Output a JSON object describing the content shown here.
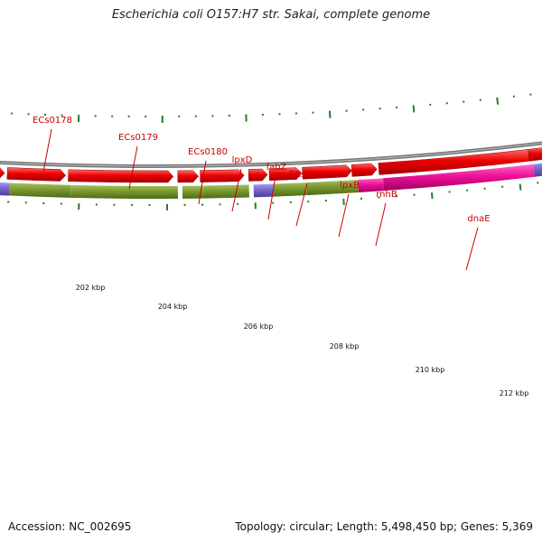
{
  "title": "Escherichia coli O157:H7 str. Sakai, complete genome",
  "footer": {
    "accession": "Accession: NC_002695",
    "summary": "Topology: circular; Length: 5,498,450 bp; Genes: 5,369"
  },
  "colors": {
    "gene_red": "#ee0000",
    "green_feature": "#7a9a2e",
    "pink_feature": "#ee1199",
    "blue_feature": "#7766cc",
    "backbone": "#777777",
    "tick_green": "#2a7a2a",
    "label_red": "#cc0000"
  },
  "gene_labels": [
    "ECs0178",
    "ECs0179",
    "ECs0180",
    "lpxD",
    "fabZ",
    "ECs0183",
    "lpxB",
    "rnhB",
    "dnaE"
  ],
  "scale_labels": [
    "202 kbp",
    "204 kbp",
    "206 kbp",
    "208 kbp",
    "210 kbp",
    "212 kbp"
  ]
}
